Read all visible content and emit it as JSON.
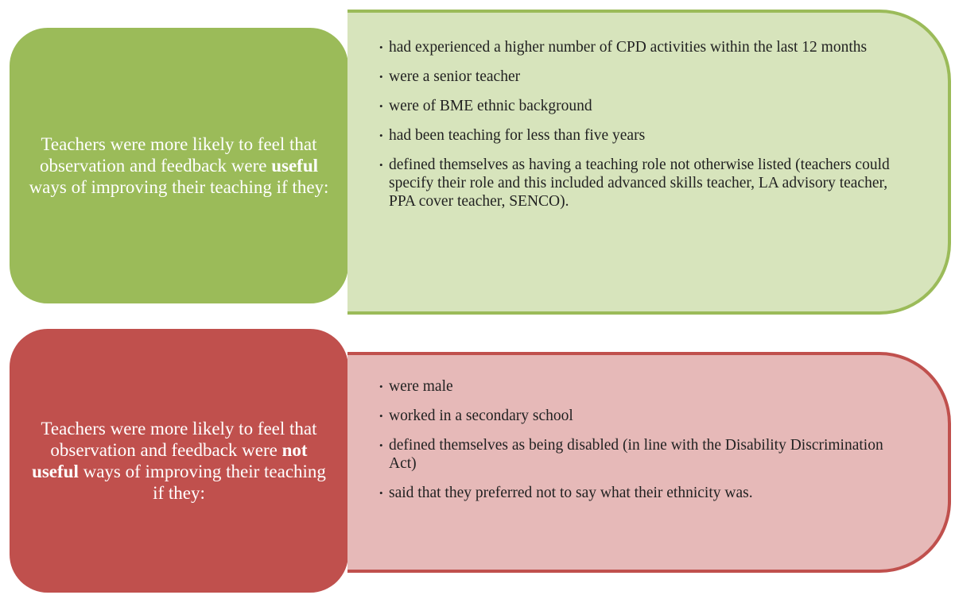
{
  "panels": [
    {
      "lead": {
        "before": "Teachers were more likely to feel that observation and feedback were",
        "emphasis": "useful",
        "after": "ways of improving their teaching if they:"
      },
      "items": [
        "had experienced a higher number of CPD activities within the last 12 months",
        "were a senior teacher",
        "were of BME ethnic background",
        "had been teaching for less than five years",
        "defined themselves as having a teaching role not otherwise listed (teachers could specify their role and this included advanced skills teacher, LA advisory teacher, PPA cover teacher, SENCO)."
      ]
    },
    {
      "lead": {
        "before": "Teachers were more likely to feel that observation and feedback were",
        "emphasis": "not useful",
        "after": "ways of improving their teaching if they:"
      },
      "items": [
        "were male",
        "worked in a secondary school",
        "defined themselves as being disabled (in line with the Disability Discrimination Act)",
        "said that they preferred not to say what their ethnicity was."
      ]
    }
  ]
}
